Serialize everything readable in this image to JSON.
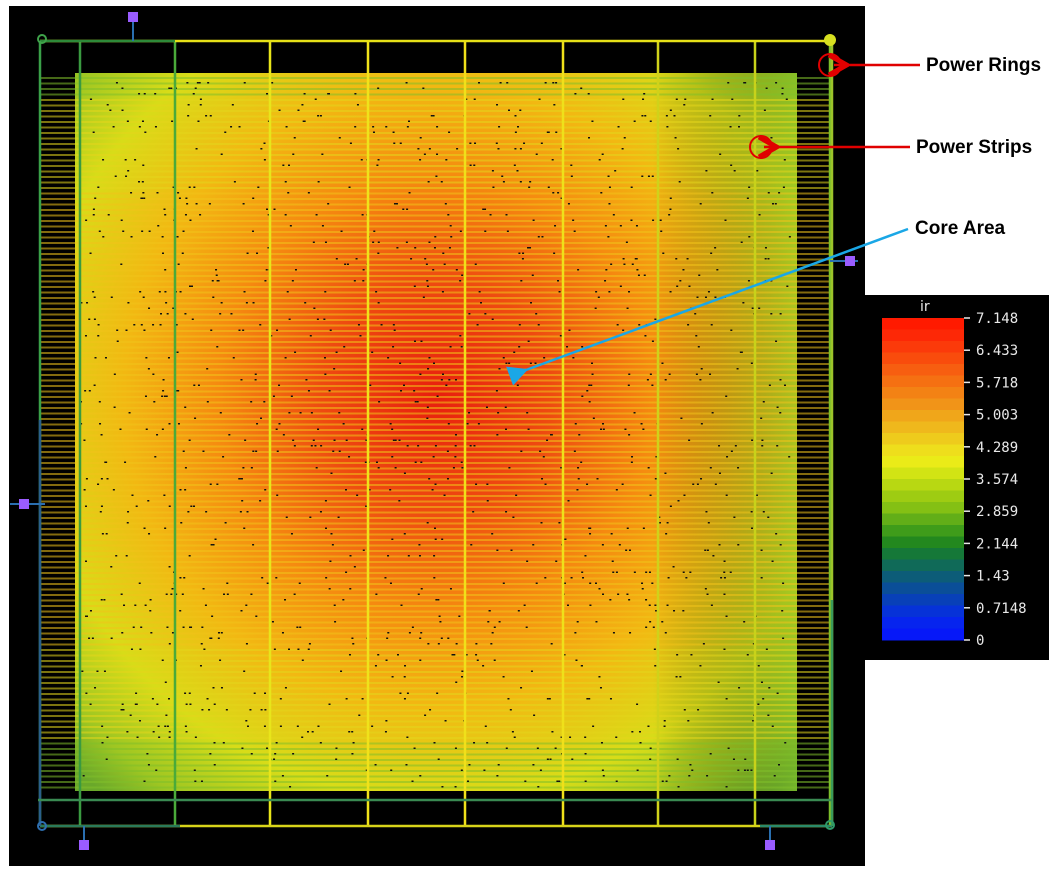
{
  "annotations": {
    "power_rings": "Power Rings",
    "power_strips": "Power Strips",
    "core_area": "Core Area"
  },
  "legend": {
    "title": "ir",
    "ticks": [
      "7.148",
      "6.433",
      "5.718",
      "5.003",
      "4.289",
      "3.574",
      "2.859",
      "2.144",
      "1.43",
      "0.7148",
      "0"
    ]
  },
  "colors": {
    "background": "#000000",
    "callout_red": "#e00000",
    "callout_blue": "#1aa7e6",
    "pin_purple": "#9a5cff"
  }
}
